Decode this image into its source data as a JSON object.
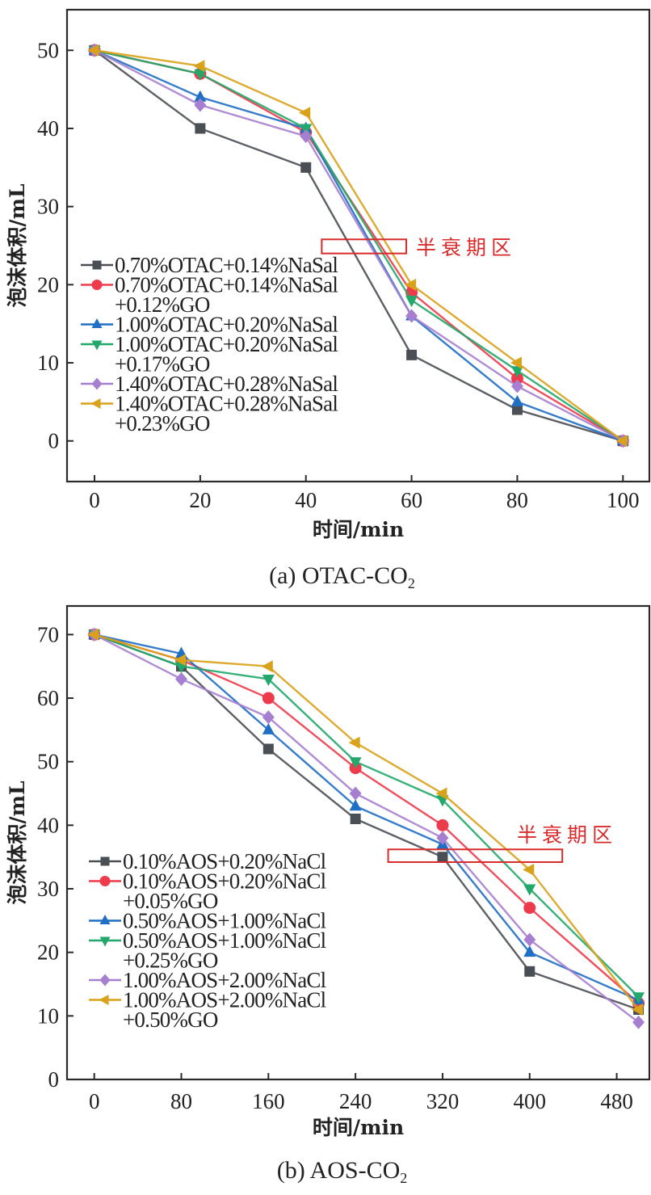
{
  "chart_data": [
    {
      "type": "line",
      "panel": "a",
      "caption": "(a) OTAC-CO",
      "caption_sub": "2",
      "xlabel": "时间/min",
      "ylabel": "泡沫体积/mL",
      "xlim": [
        -5.2,
        105
      ],
      "ylim": [
        -5.2,
        55.2
      ],
      "xticks": [
        0,
        20,
        40,
        60,
        80,
        100
      ],
      "yticks": [
        0,
        10,
        20,
        30,
        40,
        50
      ],
      "grid": false,
      "legend_position": "center-left",
      "x": [
        0,
        20,
        40,
        60,
        80,
        100
      ],
      "series": [
        {
          "name": "0.70%OTAC+0.14%NaSal",
          "name_lines": [
            "0.70%OTAC+0.14%NaSal"
          ],
          "color": "#4a4f55",
          "marker": "square",
          "values": [
            50,
            40,
            35,
            11,
            4,
            0
          ]
        },
        {
          "name": "0.70%OTAC+0.14%NaSal+0.12%GO",
          "name_lines": [
            "0.70%OTAC+0.14%NaSal",
            "+0.12%GO"
          ],
          "color": "#ee3b4b",
          "marker": "circle",
          "values": [
            50,
            47,
            39.5,
            19,
            8,
            0
          ]
        },
        {
          "name": "1.00%OTAC+0.20%NaSal",
          "name_lines": [
            "1.00%OTAC+0.20%NaSal"
          ],
          "color": "#1f6fc4",
          "marker": "triangle-up",
          "values": [
            50,
            44,
            40,
            16,
            5,
            0
          ]
        },
        {
          "name": "1.00%OTAC+0.20%NaSal+0.17%GO",
          "name_lines": [
            "1.00%OTAC+0.20%NaSal",
            "+0.17%GO"
          ],
          "color": "#22a86a",
          "marker": "triangle-down",
          "values": [
            50,
            47,
            40,
            18,
            9,
            0
          ]
        },
        {
          "name": "1.40%OTAC+0.28%NaSal",
          "name_lines": [
            "1.40%OTAC+0.28%NaSal"
          ],
          "color": "#a77fd0",
          "marker": "diamond",
          "values": [
            50,
            43,
            39,
            16,
            7,
            0
          ]
        },
        {
          "name": "1.40%OTAC+0.28%NaSal+0.23%GO",
          "name_lines": [
            "1.40%OTAC+0.28%NaSal",
            "+0.23%GO"
          ],
          "color": "#d9a21b",
          "marker": "triangle-left",
          "values": [
            50,
            48,
            42,
            20,
            10,
            0
          ]
        }
      ],
      "annotation": {
        "text": "半衰期区",
        "color": "#d92b2b",
        "box_x": [
          43,
          59
        ],
        "box_y": [
          24,
          25.8
        ]
      }
    },
    {
      "type": "line",
      "panel": "b",
      "caption": "(b) AOS-CO",
      "caption_sub": "2",
      "xlabel": "时间/min",
      "ylabel": "泡沫体积/mL",
      "xlim": [
        -25,
        510
      ],
      "ylim": [
        0,
        74.5
      ],
      "xticks": [
        0,
        80,
        160,
        240,
        320,
        400,
        480
      ],
      "yticks": [
        0,
        10,
        20,
        30,
        40,
        50,
        60,
        70
      ],
      "grid": false,
      "legend_position": "bottom-left",
      "x": [
        0,
        80,
        160,
        240,
        320,
        400,
        500
      ],
      "series": [
        {
          "name": "0.10%AOS+0.20%NaCl",
          "name_lines": [
            "0.10%AOS+0.20%NaCl"
          ],
          "color": "#4a4f55",
          "marker": "square",
          "values": [
            70,
            65,
            52,
            41,
            35,
            17,
            11
          ]
        },
        {
          "name": "0.10%AOS+0.20%NaCl+0.05%GO",
          "name_lines": [
            "0.10%AOS+0.20%NaCl",
            "+0.05%GO"
          ],
          "color": "#ee3b4b",
          "marker": "circle",
          "values": [
            70,
            66,
            60,
            49,
            40,
            27,
            12
          ]
        },
        {
          "name": "0.50%AOS+1.00%NaCl",
          "name_lines": [
            "0.50%AOS+1.00%NaCl"
          ],
          "color": "#1f6fc4",
          "marker": "triangle-up",
          "values": [
            70,
            67,
            55,
            43,
            37,
            20,
            12.5
          ]
        },
        {
          "name": "0.50%AOS+1.00%NaCl+0.25%GO",
          "name_lines": [
            "0.50%AOS+1.00%NaCl",
            "+0.25%GO"
          ],
          "color": "#22a86a",
          "marker": "triangle-down",
          "values": [
            70,
            65,
            63,
            50,
            44,
            30,
            13
          ]
        },
        {
          "name": "1.00%AOS+2.00%NaCl",
          "name_lines": [
            "1.00%AOS+2.00%NaCl"
          ],
          "color": "#a77fd0",
          "marker": "diamond",
          "values": [
            70,
            63,
            57,
            45,
            38,
            22,
            9
          ]
        },
        {
          "name": "1.00%AOS+2.00%NaCl+0.50%GO",
          "name_lines": [
            "1.00%AOS+2.00%NaCl",
            "+0.50%GO"
          ],
          "color": "#d9a21b",
          "marker": "triangle-left",
          "values": [
            70,
            66,
            65,
            53,
            45,
            33,
            11
          ]
        }
      ],
      "annotation": {
        "text": "半衰期区",
        "color": "#d92b2b",
        "box_x": [
          270,
          430
        ],
        "box_y": [
          34.2,
          36.2
        ]
      }
    }
  ]
}
